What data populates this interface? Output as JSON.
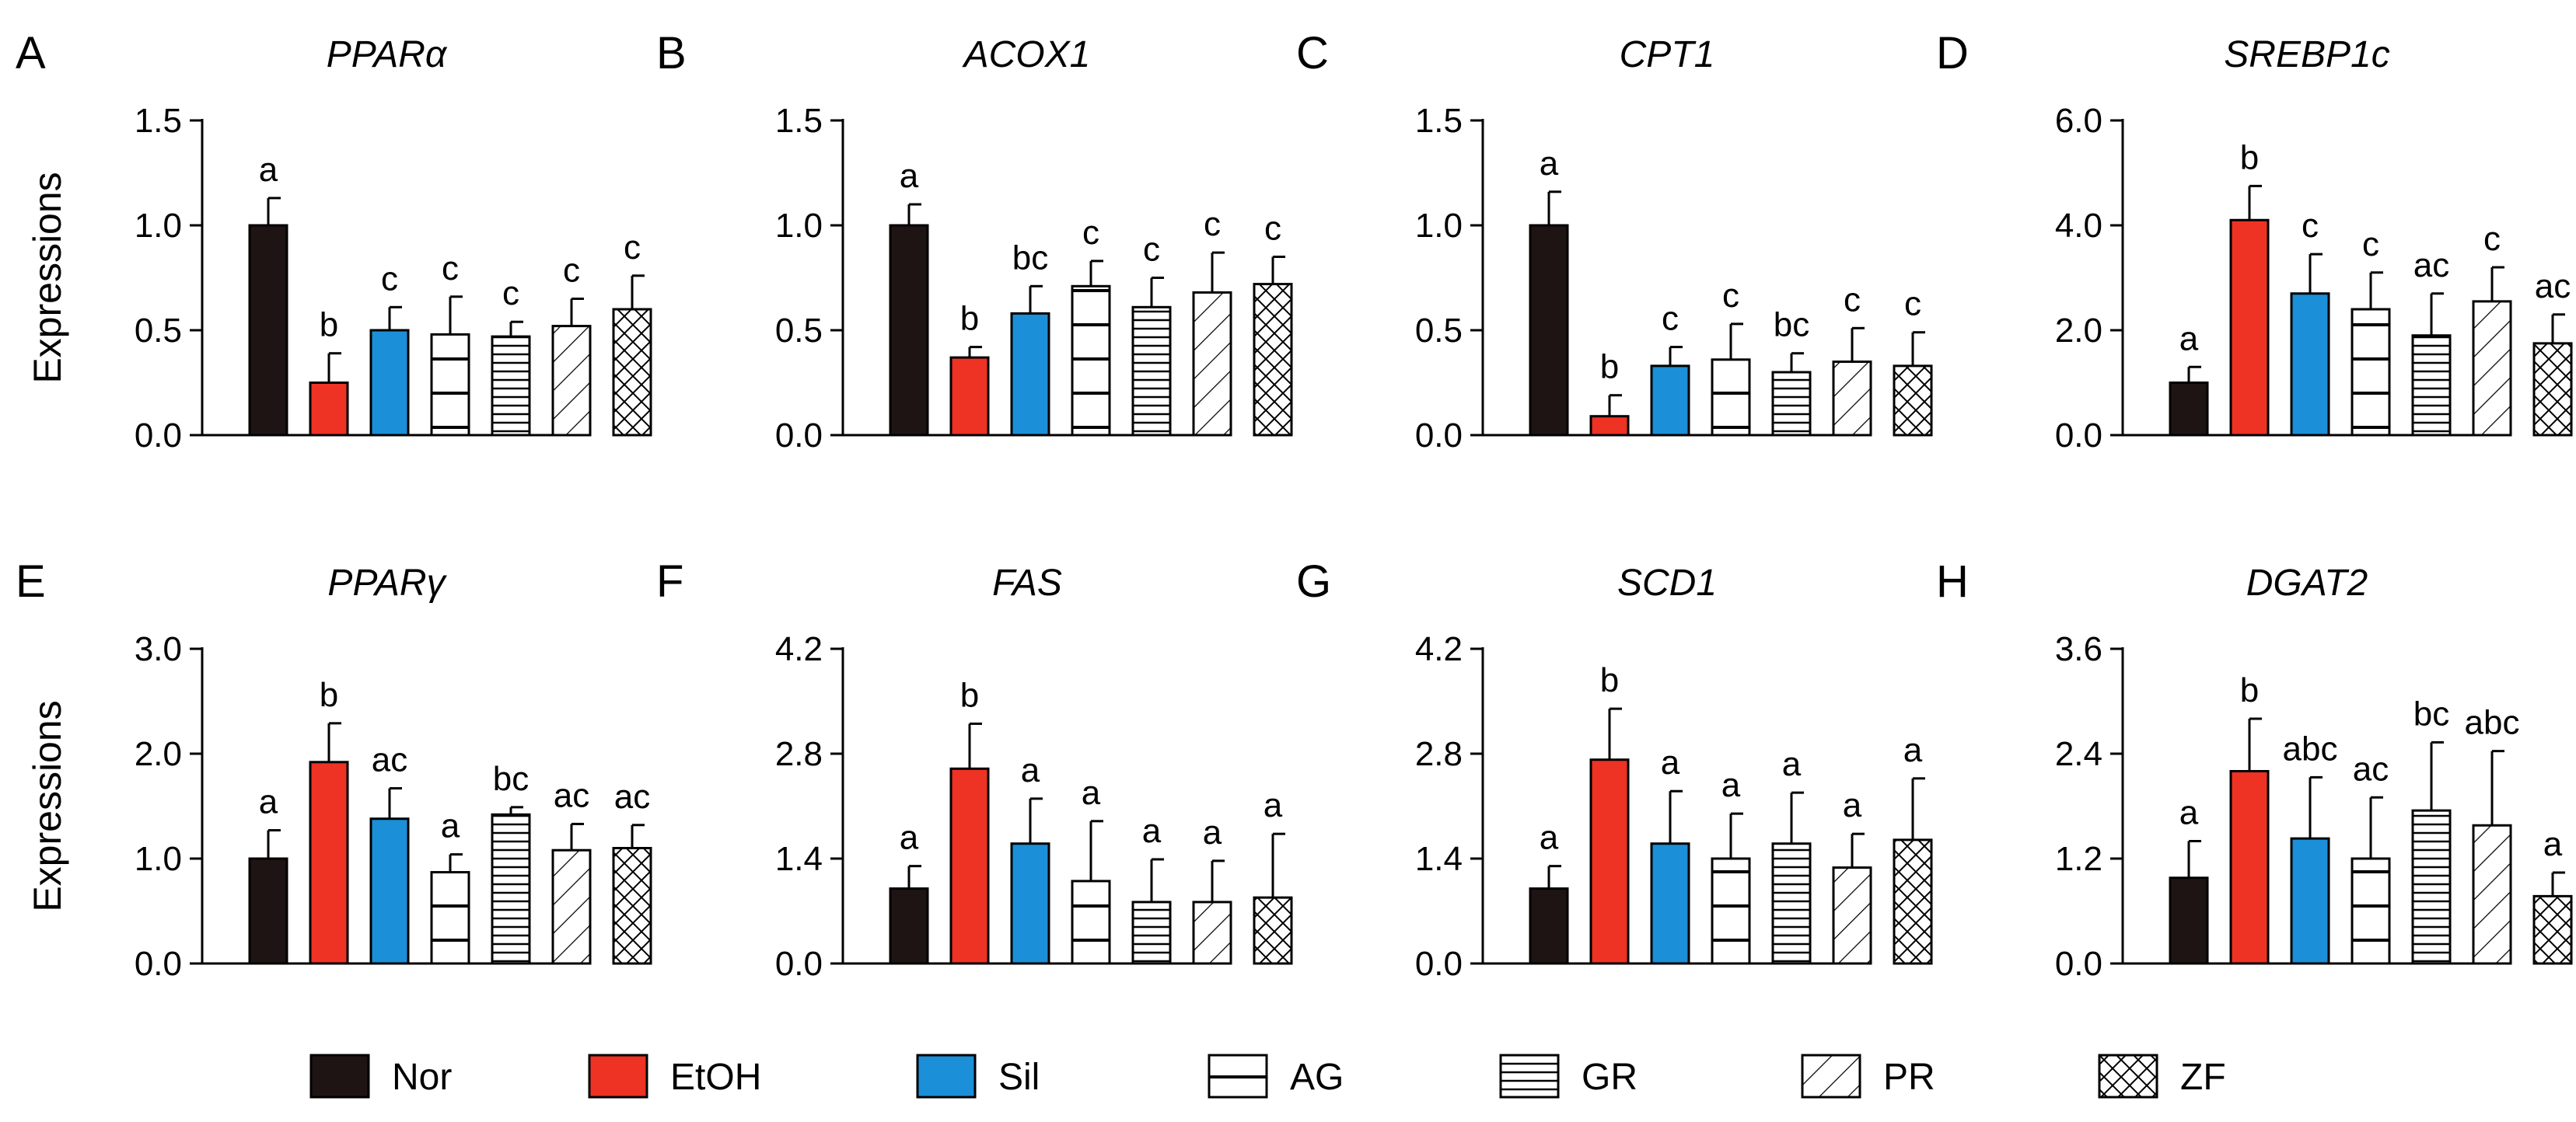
{
  "ylabel": "Expressions",
  "colors": {
    "Nor": "#1f1414",
    "EtOH": "#ee3224",
    "Sil": "#1b8fd8",
    "outline": "#000000"
  },
  "legend": {
    "items": [
      {
        "label": "Nor",
        "pattern": "solid-dark"
      },
      {
        "label": "EtOH",
        "pattern": "solid-red"
      },
      {
        "label": "Sil",
        "pattern": "solid-blue"
      },
      {
        "label": "AG",
        "pattern": "wide-horizontal-lines"
      },
      {
        "label": "GR",
        "pattern": "dense-horizontal-lines"
      },
      {
        "label": "PR",
        "pattern": "diagonal-lines"
      },
      {
        "label": "ZF",
        "pattern": "crosshatch"
      }
    ]
  },
  "chart_data": [
    {
      "panel": "A",
      "title": "PPARα",
      "type": "bar",
      "ylabel": "Expressions",
      "categories": [
        "Nor",
        "EtOH",
        "Sil",
        "AG",
        "GR",
        "PR",
        "ZF"
      ],
      "values": [
        1.0,
        0.25,
        0.5,
        0.48,
        0.47,
        0.52,
        0.6
      ],
      "errors": [
        0.13,
        0.14,
        0.11,
        0.18,
        0.07,
        0.13,
        0.16
      ],
      "letters": [
        "a",
        "b",
        "c",
        "c",
        "c",
        "c",
        "c"
      ],
      "ylim": [
        0,
        1.5
      ],
      "ticks": [
        "0.0",
        "0.5",
        "1.0",
        "1.5"
      ]
    },
    {
      "panel": "B",
      "title": "ACOX1",
      "type": "bar",
      "ylabel": "",
      "categories": [
        "Nor",
        "EtOH",
        "Sil",
        "AG",
        "GR",
        "PR",
        "ZF"
      ],
      "values": [
        1.0,
        0.37,
        0.58,
        0.71,
        0.61,
        0.68,
        0.72
      ],
      "errors": [
        0.1,
        0.05,
        0.13,
        0.12,
        0.14,
        0.19,
        0.13
      ],
      "letters": [
        "a",
        "b",
        "bc",
        "c",
        "c",
        "c",
        "c"
      ],
      "ylim": [
        0,
        1.5
      ],
      "ticks": [
        "0.0",
        "0.5",
        "1.0",
        "1.5"
      ]
    },
    {
      "panel": "C",
      "title": "CPT1",
      "type": "bar",
      "ylabel": "",
      "categories": [
        "Nor",
        "EtOH",
        "Sil",
        "AG",
        "GR",
        "PR",
        "ZF"
      ],
      "values": [
        1.0,
        0.09,
        0.33,
        0.36,
        0.3,
        0.35,
        0.33
      ],
      "errors": [
        0.16,
        0.1,
        0.09,
        0.17,
        0.09,
        0.16,
        0.16
      ],
      "letters": [
        "a",
        "b",
        "c",
        "c",
        "bc",
        "c",
        "c"
      ],
      "ylim": [
        0,
        1.5
      ],
      "ticks": [
        "0.0",
        "0.5",
        "1.0",
        "1.5"
      ]
    },
    {
      "panel": "D",
      "title": "SREBP1c",
      "type": "bar",
      "ylabel": "",
      "categories": [
        "Nor",
        "EtOH",
        "Sil",
        "AG",
        "GR",
        "PR",
        "ZF"
      ],
      "values": [
        1.0,
        4.1,
        2.7,
        2.4,
        1.9,
        2.55,
        1.75
      ],
      "errors": [
        0.3,
        0.65,
        0.75,
        0.7,
        0.8,
        0.65,
        0.55
      ],
      "letters": [
        "a",
        "b",
        "c",
        "c",
        "ac",
        "c",
        "ac"
      ],
      "ylim": [
        0,
        6.0
      ],
      "ticks": [
        "0.0",
        "2.0",
        "4.0",
        "6.0"
      ]
    },
    {
      "panel": "E",
      "title": "PPARγ",
      "type": "bar",
      "ylabel": "Expressions",
      "categories": [
        "Nor",
        "EtOH",
        "Sil",
        "AG",
        "GR",
        "PR",
        "ZF"
      ],
      "values": [
        1.0,
        1.92,
        1.38,
        0.87,
        1.42,
        1.08,
        1.1
      ],
      "errors": [
        0.27,
        0.37,
        0.29,
        0.17,
        0.07,
        0.25,
        0.22
      ],
      "letters": [
        "a",
        "b",
        "ac",
        "a",
        "bc",
        "ac",
        "ac"
      ],
      "ylim": [
        0,
        3.0
      ],
      "ticks": [
        "0.0",
        "1.0",
        "2.0",
        "3.0"
      ]
    },
    {
      "panel": "F",
      "title": "FAS",
      "type": "bar",
      "ylabel": "",
      "categories": [
        "Nor",
        "EtOH",
        "Sil",
        "AG",
        "GR",
        "PR",
        "ZF"
      ],
      "values": [
        1.0,
        2.6,
        1.6,
        1.1,
        0.82,
        0.82,
        0.88
      ],
      "errors": [
        0.3,
        0.6,
        0.6,
        0.8,
        0.57,
        0.55,
        0.85
      ],
      "letters": [
        "a",
        "b",
        "a",
        "a",
        "a",
        "a",
        "a"
      ],
      "ylim": [
        0,
        4.2
      ],
      "ticks": [
        "0.0",
        "1.4",
        "2.8",
        "4.2"
      ]
    },
    {
      "panel": "G",
      "title": "SCD1",
      "type": "bar",
      "ylabel": "",
      "categories": [
        "Nor",
        "EtOH",
        "Sil",
        "AG",
        "GR",
        "PR",
        "ZF"
      ],
      "values": [
        1.0,
        2.72,
        1.6,
        1.4,
        1.6,
        1.28,
        1.65
      ],
      "errors": [
        0.3,
        0.68,
        0.7,
        0.6,
        0.68,
        0.45,
        0.82
      ],
      "letters": [
        "a",
        "b",
        "a",
        "a",
        "a",
        "a",
        "a"
      ],
      "ylim": [
        0,
        4.2
      ],
      "ticks": [
        "0.0",
        "1.4",
        "2.8",
        "4.2"
      ]
    },
    {
      "panel": "H",
      "title": "DGAT2",
      "type": "bar",
      "ylabel": "",
      "categories": [
        "Nor",
        "EtOH",
        "Sil",
        "AG",
        "GR",
        "PR",
        "ZF"
      ],
      "values": [
        0.98,
        2.2,
        1.43,
        1.2,
        1.75,
        1.58,
        0.77
      ],
      "errors": [
        0.42,
        0.6,
        0.7,
        0.7,
        0.78,
        0.85,
        0.27
      ],
      "letters": [
        "a",
        "b",
        "abc",
        "ac",
        "bc",
        "abc",
        "a"
      ],
      "ylim": [
        0,
        3.6
      ],
      "ticks": [
        "0.0",
        "1.2",
        "2.4",
        "3.6"
      ]
    }
  ]
}
